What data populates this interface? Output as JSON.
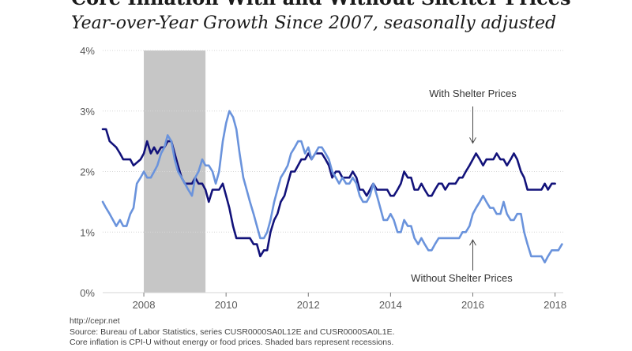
{
  "chart_data": {
    "type": "line",
    "title": "Core Inflation With and Without Shelter Prices",
    "subtitle": "Year-over-Year Growth Since 2007, seasonally adjusted",
    "xlabel": "",
    "ylabel": "",
    "xlim": [
      2007.0,
      2018.2
    ],
    "ylim": [
      0,
      4
    ],
    "x_ticks": [
      "2008",
      "2010",
      "2012",
      "2014",
      "2016",
      "2018"
    ],
    "y_ticks": [
      "0%",
      "1%",
      "2%",
      "3%",
      "4%"
    ],
    "grid": "horizontal",
    "recession": {
      "start": 2008.0,
      "end": 2009.5
    },
    "series": [
      {
        "name": "With Shelter Prices",
        "color": "#12127a",
        "points": [
          [
            2007.0,
            2.7
          ],
          [
            2007.08,
            2.7
          ],
          [
            2007.17,
            2.5
          ],
          [
            2007.33,
            2.4
          ],
          [
            2007.42,
            2.3
          ],
          [
            2007.5,
            2.2
          ],
          [
            2007.67,
            2.2
          ],
          [
            2007.75,
            2.1
          ],
          [
            2007.92,
            2.2
          ],
          [
            2008.0,
            2.3
          ],
          [
            2008.08,
            2.5
          ],
          [
            2008.17,
            2.3
          ],
          [
            2008.25,
            2.4
          ],
          [
            2008.33,
            2.3
          ],
          [
            2008.42,
            2.4
          ],
          [
            2008.5,
            2.4
          ],
          [
            2008.58,
            2.5
          ],
          [
            2008.67,
            2.5
          ],
          [
            2008.75,
            2.3
          ],
          [
            2008.83,
            2.1
          ],
          [
            2008.92,
            1.9
          ],
          [
            2009.0,
            1.8
          ],
          [
            2009.08,
            1.8
          ],
          [
            2009.17,
            1.8
          ],
          [
            2009.25,
            1.9
          ],
          [
            2009.33,
            1.8
          ],
          [
            2009.42,
            1.8
          ],
          [
            2009.5,
            1.7
          ],
          [
            2009.58,
            1.5
          ],
          [
            2009.67,
            1.7
          ],
          [
            2009.75,
            1.7
          ],
          [
            2009.83,
            1.7
          ],
          [
            2009.92,
            1.8
          ],
          [
            2010.0,
            1.6
          ],
          [
            2010.08,
            1.4
          ],
          [
            2010.17,
            1.1
          ],
          [
            2010.25,
            0.9
          ],
          [
            2010.33,
            0.9
          ],
          [
            2010.42,
            0.9
          ],
          [
            2010.5,
            0.9
          ],
          [
            2010.58,
            0.9
          ],
          [
            2010.67,
            0.8
          ],
          [
            2010.75,
            0.8
          ],
          [
            2010.83,
            0.6
          ],
          [
            2010.92,
            0.7
          ],
          [
            2011.0,
            0.7
          ],
          [
            2011.08,
            1.0
          ],
          [
            2011.17,
            1.2
          ],
          [
            2011.25,
            1.3
          ],
          [
            2011.33,
            1.5
          ],
          [
            2011.42,
            1.6
          ],
          [
            2011.5,
            1.8
          ],
          [
            2011.58,
            2.0
          ],
          [
            2011.67,
            2.0
          ],
          [
            2011.75,
            2.1
          ],
          [
            2011.83,
            2.2
          ],
          [
            2011.92,
            2.2
          ],
          [
            2012.0,
            2.3
          ],
          [
            2012.08,
            2.2
          ],
          [
            2012.17,
            2.3
          ],
          [
            2012.25,
            2.3
          ],
          [
            2012.33,
            2.3
          ],
          [
            2012.42,
            2.2
          ],
          [
            2012.5,
            2.1
          ],
          [
            2012.58,
            1.9
          ],
          [
            2012.67,
            2.0
          ],
          [
            2012.75,
            2.0
          ],
          [
            2012.83,
            1.9
          ],
          [
            2012.92,
            1.9
          ],
          [
            2013.0,
            1.9
          ],
          [
            2013.08,
            2.0
          ],
          [
            2013.17,
            1.9
          ],
          [
            2013.25,
            1.7
          ],
          [
            2013.33,
            1.7
          ],
          [
            2013.42,
            1.6
          ],
          [
            2013.5,
            1.7
          ],
          [
            2013.58,
            1.8
          ],
          [
            2013.67,
            1.7
          ],
          [
            2013.75,
            1.7
          ],
          [
            2013.83,
            1.7
          ],
          [
            2013.92,
            1.7
          ],
          [
            2014.0,
            1.6
          ],
          [
            2014.08,
            1.6
          ],
          [
            2014.17,
            1.7
          ],
          [
            2014.25,
            1.8
          ],
          [
            2014.33,
            2.0
          ],
          [
            2014.42,
            1.9
          ],
          [
            2014.5,
            1.9
          ],
          [
            2014.58,
            1.7
          ],
          [
            2014.67,
            1.7
          ],
          [
            2014.75,
            1.8
          ],
          [
            2014.83,
            1.7
          ],
          [
            2014.92,
            1.6
          ],
          [
            2015.0,
            1.6
          ],
          [
            2015.08,
            1.7
          ],
          [
            2015.17,
            1.8
          ],
          [
            2015.25,
            1.8
          ],
          [
            2015.33,
            1.7
          ],
          [
            2015.42,
            1.8
          ],
          [
            2015.5,
            1.8
          ],
          [
            2015.58,
            1.8
          ],
          [
            2015.67,
            1.9
          ],
          [
            2015.75,
            1.9
          ],
          [
            2015.83,
            2.0
          ],
          [
            2015.92,
            2.1
          ],
          [
            2016.0,
            2.2
          ],
          [
            2016.08,
            2.3
          ],
          [
            2016.17,
            2.2
          ],
          [
            2016.25,
            2.1
          ],
          [
            2016.33,
            2.2
          ],
          [
            2016.42,
            2.2
          ],
          [
            2016.5,
            2.2
          ],
          [
            2016.58,
            2.3
          ],
          [
            2016.67,
            2.2
          ],
          [
            2016.75,
            2.2
          ],
          [
            2016.83,
            2.1
          ],
          [
            2016.92,
            2.2
          ],
          [
            2017.0,
            2.3
          ],
          [
            2017.08,
            2.2
          ],
          [
            2017.17,
            2.0
          ],
          [
            2017.25,
            1.9
          ],
          [
            2017.33,
            1.7
          ],
          [
            2017.42,
            1.7
          ],
          [
            2017.5,
            1.7
          ],
          [
            2017.58,
            1.7
          ],
          [
            2017.67,
            1.7
          ],
          [
            2017.75,
            1.8
          ],
          [
            2017.83,
            1.7
          ],
          [
            2017.92,
            1.8
          ],
          [
            2018.0,
            1.8
          ]
        ]
      },
      {
        "name": "Without Shelter Prices",
        "color": "#6a93dc",
        "points": [
          [
            2007.0,
            1.5
          ],
          [
            2007.08,
            1.4
          ],
          [
            2007.17,
            1.3
          ],
          [
            2007.25,
            1.2
          ],
          [
            2007.33,
            1.1
          ],
          [
            2007.42,
            1.2
          ],
          [
            2007.5,
            1.1
          ],
          [
            2007.58,
            1.1
          ],
          [
            2007.67,
            1.3
          ],
          [
            2007.75,
            1.4
          ],
          [
            2007.83,
            1.8
          ],
          [
            2007.92,
            1.9
          ],
          [
            2008.0,
            2.0
          ],
          [
            2008.08,
            1.9
          ],
          [
            2008.17,
            1.9
          ],
          [
            2008.25,
            2.0
          ],
          [
            2008.33,
            2.1
          ],
          [
            2008.42,
            2.3
          ],
          [
            2008.5,
            2.4
          ],
          [
            2008.58,
            2.6
          ],
          [
            2008.67,
            2.5
          ],
          [
            2008.75,
            2.2
          ],
          [
            2008.83,
            2.0
          ],
          [
            2008.92,
            1.9
          ],
          [
            2009.0,
            1.8
          ],
          [
            2009.08,
            1.7
          ],
          [
            2009.17,
            1.6
          ],
          [
            2009.25,
            1.9
          ],
          [
            2009.33,
            2.0
          ],
          [
            2009.42,
            2.2
          ],
          [
            2009.5,
            2.1
          ],
          [
            2009.58,
            2.1
          ],
          [
            2009.67,
            2.0
          ],
          [
            2009.75,
            1.8
          ],
          [
            2009.83,
            2.0
          ],
          [
            2009.92,
            2.5
          ],
          [
            2010.0,
            2.8
          ],
          [
            2010.08,
            3.0
          ],
          [
            2010.17,
            2.9
          ],
          [
            2010.25,
            2.7
          ],
          [
            2010.33,
            2.3
          ],
          [
            2010.42,
            1.9
          ],
          [
            2010.5,
            1.7
          ],
          [
            2010.58,
            1.5
          ],
          [
            2010.67,
            1.3
          ],
          [
            2010.75,
            1.1
          ],
          [
            2010.83,
            0.9
          ],
          [
            2010.92,
            0.9
          ],
          [
            2011.0,
            1.0
          ],
          [
            2011.08,
            1.2
          ],
          [
            2011.17,
            1.5
          ],
          [
            2011.25,
            1.7
          ],
          [
            2011.33,
            1.9
          ],
          [
            2011.42,
            2.0
          ],
          [
            2011.5,
            2.1
          ],
          [
            2011.58,
            2.3
          ],
          [
            2011.67,
            2.4
          ],
          [
            2011.75,
            2.5
          ],
          [
            2011.83,
            2.5
          ],
          [
            2011.92,
            2.3
          ],
          [
            2012.0,
            2.4
          ],
          [
            2012.08,
            2.2
          ],
          [
            2012.17,
            2.3
          ],
          [
            2012.25,
            2.4
          ],
          [
            2012.33,
            2.4
          ],
          [
            2012.42,
            2.3
          ],
          [
            2012.5,
            2.2
          ],
          [
            2012.58,
            2.0
          ],
          [
            2012.67,
            1.9
          ],
          [
            2012.75,
            1.8
          ],
          [
            2012.83,
            1.9
          ],
          [
            2012.92,
            1.8
          ],
          [
            2013.0,
            1.8
          ],
          [
            2013.08,
            1.9
          ],
          [
            2013.17,
            1.8
          ],
          [
            2013.25,
            1.6
          ],
          [
            2013.33,
            1.5
          ],
          [
            2013.42,
            1.5
          ],
          [
            2013.5,
            1.6
          ],
          [
            2013.58,
            1.8
          ],
          [
            2013.67,
            1.6
          ],
          [
            2013.75,
            1.4
          ],
          [
            2013.83,
            1.2
          ],
          [
            2013.92,
            1.2
          ],
          [
            2014.0,
            1.3
          ],
          [
            2014.08,
            1.2
          ],
          [
            2014.17,
            1.0
          ],
          [
            2014.25,
            1.0
          ],
          [
            2014.33,
            1.2
          ],
          [
            2014.42,
            1.1
          ],
          [
            2014.5,
            1.1
          ],
          [
            2014.58,
            0.9
          ],
          [
            2014.67,
            0.8
          ],
          [
            2014.75,
            0.9
          ],
          [
            2014.83,
            0.8
          ],
          [
            2014.92,
            0.7
          ],
          [
            2015.0,
            0.7
          ],
          [
            2015.08,
            0.8
          ],
          [
            2015.17,
            0.9
          ],
          [
            2015.25,
            0.9
          ],
          [
            2015.33,
            0.9
          ],
          [
            2015.42,
            0.9
          ],
          [
            2015.5,
            0.9
          ],
          [
            2015.58,
            0.9
          ],
          [
            2015.67,
            0.9
          ],
          [
            2015.75,
            1.0
          ],
          [
            2015.83,
            1.0
          ],
          [
            2015.92,
            1.1
          ],
          [
            2016.0,
            1.3
          ],
          [
            2016.08,
            1.4
          ],
          [
            2016.17,
            1.5
          ],
          [
            2016.25,
            1.6
          ],
          [
            2016.33,
            1.5
          ],
          [
            2016.42,
            1.4
          ],
          [
            2016.5,
            1.4
          ],
          [
            2016.58,
            1.3
          ],
          [
            2016.67,
            1.3
          ],
          [
            2016.75,
            1.5
          ],
          [
            2016.83,
            1.3
          ],
          [
            2016.92,
            1.2
          ],
          [
            2017.0,
            1.2
          ],
          [
            2017.08,
            1.3
          ],
          [
            2017.17,
            1.3
          ],
          [
            2017.25,
            1.0
          ],
          [
            2017.33,
            0.8
          ],
          [
            2017.42,
            0.6
          ],
          [
            2017.5,
            0.6
          ],
          [
            2017.58,
            0.6
          ],
          [
            2017.67,
            0.6
          ],
          [
            2017.75,
            0.5
          ],
          [
            2017.83,
            0.6
          ],
          [
            2017.92,
            0.7
          ],
          [
            2018.0,
            0.7
          ],
          [
            2018.08,
            0.7
          ],
          [
            2018.17,
            0.8
          ]
        ]
      }
    ],
    "annotations": [
      {
        "text": "With Shelter Prices",
        "arrow": "down",
        "target": [
          2016.0,
          2.25
        ]
      },
      {
        "text": "Without Shelter Prices",
        "arrow": "up",
        "target": [
          2016.0,
          0.95
        ]
      }
    ],
    "colors": {
      "grid": "#d6d6d6",
      "recession": "#c6c6c6",
      "axis_text": "#5a5a5a"
    }
  },
  "footer": {
    "line1": "http://cepr.net",
    "line2": "Source: Bureau of Labor Statistics, series CUSR0000SA0L12E and CUSR0000SA0L1E.",
    "line3": "Core inflation is CPI-U without energy or food prices. Shaded bars represent recessions."
  }
}
